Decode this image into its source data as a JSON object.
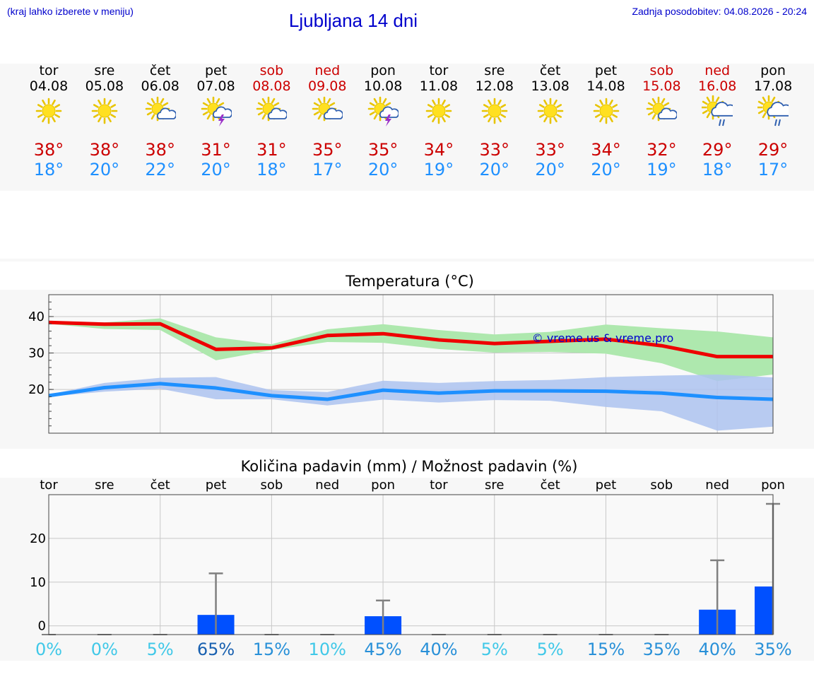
{
  "header": {
    "hint": "(kraj lahko izberete v meniju)",
    "title": "Ljubljana 14 dni",
    "updated": "Zadnja posodobitev: 04.08.2026 - 20:24"
  },
  "days": [
    {
      "name": "tor",
      "date": "04.08",
      "weekend": false,
      "icon": "sunny-icon",
      "tmax": "38°",
      "tmin": "18°"
    },
    {
      "name": "sre",
      "date": "05.08",
      "weekend": false,
      "icon": "sunny-icon",
      "tmax": "38°",
      "tmin": "20°"
    },
    {
      "name": "čet",
      "date": "06.08",
      "weekend": false,
      "icon": "sun-cloud-icon",
      "tmax": "38°",
      "tmin": "22°"
    },
    {
      "name": "pet",
      "date": "07.08",
      "weekend": false,
      "icon": "sun-thunderstorm-icon",
      "tmax": "31°",
      "tmin": "20°"
    },
    {
      "name": "sob",
      "date": "08.08",
      "weekend": true,
      "icon": "sun-cloud-icon",
      "tmax": "31°",
      "tmin": "18°"
    },
    {
      "name": "ned",
      "date": "09.08",
      "weekend": true,
      "icon": "sun-cloud-icon",
      "tmax": "35°",
      "tmin": "17°"
    },
    {
      "name": "pon",
      "date": "10.08",
      "weekend": false,
      "icon": "sun-thunderstorm-icon",
      "tmax": "35°",
      "tmin": "20°"
    },
    {
      "name": "tor",
      "date": "11.08",
      "weekend": false,
      "icon": "sunny-icon",
      "tmax": "34°",
      "tmin": "19°"
    },
    {
      "name": "sre",
      "date": "12.08",
      "weekend": false,
      "icon": "sunny-icon",
      "tmax": "33°",
      "tmin": "20°"
    },
    {
      "name": "čet",
      "date": "13.08",
      "weekend": false,
      "icon": "sunny-icon",
      "tmax": "33°",
      "tmin": "20°"
    },
    {
      "name": "pet",
      "date": "14.08",
      "weekend": false,
      "icon": "sunny-icon",
      "tmax": "34°",
      "tmin": "20°"
    },
    {
      "name": "sob",
      "date": "15.08",
      "weekend": true,
      "icon": "sun-cloud-icon",
      "tmax": "32°",
      "tmin": "19°"
    },
    {
      "name": "ned",
      "date": "16.08",
      "weekend": true,
      "icon": "sun-rain-icon",
      "tmax": "29°",
      "tmin": "18°"
    },
    {
      "name": "pon",
      "date": "17.08",
      "weekend": false,
      "icon": "sun-rain-icon",
      "tmax": "29°",
      "tmin": "17°"
    }
  ],
  "colors": {
    "weekend": "#cc0000",
    "tmax": "#cc0000",
    "tmin": "#1e90ff",
    "max_band": "#aee8ae",
    "min_band": "#adc3f0",
    "max_line": "#ee0000",
    "min_line": "#1e90ff",
    "bar": "#0050ff",
    "whisker": "#808080"
  },
  "chart_data": [
    {
      "type": "line",
      "title": "Temperatura (°C)",
      "watermark": "© vreme.us & vreme.pro",
      "ylim": [
        8,
        46
      ],
      "yticks": [
        20,
        30,
        40
      ],
      "grid": true,
      "series": [
        {
          "name": "max",
          "values": [
            38.4,
            37.9,
            38.0,
            31.0,
            31.4,
            34.8,
            35.3,
            33.6,
            32.6,
            33.2,
            33.8,
            32.0,
            29.0,
            29.0
          ],
          "band_low": [
            38.0,
            36.6,
            36.3,
            28.0,
            30.8,
            33.0,
            32.8,
            31.1,
            30.1,
            30.3,
            29.8,
            27.2,
            22.3,
            24.1
          ],
          "band_high": [
            38.8,
            38.4,
            39.5,
            34.3,
            32.4,
            36.5,
            37.9,
            36.3,
            35.1,
            35.8,
            37.8,
            36.8,
            35.9,
            34.3
          ]
        },
        {
          "name": "min",
          "values": [
            18.3,
            20.5,
            21.6,
            20.4,
            18.3,
            17.3,
            19.8,
            19.0,
            19.6,
            19.6,
            19.5,
            19.0,
            17.8,
            17.3
          ],
          "band_low": [
            18.0,
            19.4,
            20.2,
            17.3,
            17.3,
            15.6,
            17.2,
            16.4,
            17.1,
            16.9,
            15.2,
            14.0,
            8.7,
            9.8
          ],
          "band_high": [
            18.6,
            21.8,
            23.2,
            23.4,
            19.8,
            19.3,
            22.4,
            21.8,
            22.3,
            22.6,
            23.4,
            23.8,
            24.1,
            23.3
          ]
        }
      ]
    },
    {
      "type": "bar",
      "title": "Količina padavin (mm) / Možnost padavin (%)",
      "categories": [
        "tor",
        "sre",
        "čet",
        "pet",
        "sob",
        "ned",
        "pon",
        "tor",
        "sre",
        "čet",
        "pet",
        "sob",
        "ned",
        "pon"
      ],
      "ylim": [
        -2,
        30
      ],
      "yticks": [
        0,
        10,
        20
      ],
      "values": [
        0,
        0,
        0,
        2.5,
        0,
        0,
        2.2,
        0,
        0,
        0,
        0,
        0,
        3.7,
        9.0
      ],
      "max_values": [
        0,
        0,
        0,
        12.0,
        0,
        0,
        5.8,
        0,
        0,
        0,
        0,
        0,
        15.0,
        27.9
      ],
      "probability": [
        "0%",
        "0%",
        "5%",
        "65%",
        "15%",
        "10%",
        "45%",
        "40%",
        "5%",
        "5%",
        "15%",
        "35%",
        "40%",
        "35%"
      ],
      "probability_colors": [
        "#40c8e8",
        "#40c8e8",
        "#40c8e8",
        "#1860b0",
        "#2890d8",
        "#40c8e8",
        "#2890d8",
        "#2890d8",
        "#40c8e8",
        "#40c8e8",
        "#2890d8",
        "#2890d8",
        "#2890d8",
        "#2890d8"
      ]
    }
  ]
}
